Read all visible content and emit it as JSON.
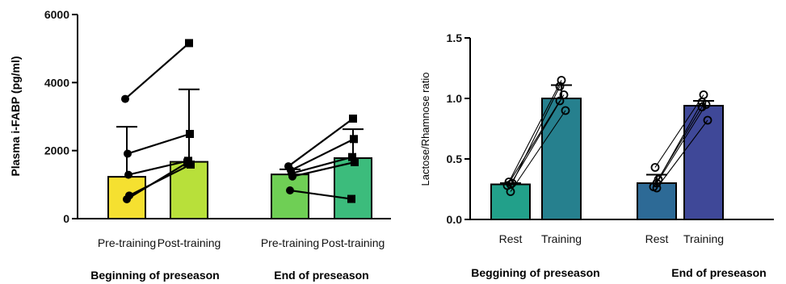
{
  "chart_data": [
    {
      "type": "bar",
      "title": "",
      "ylabel": "Plasma i-FABP (pg/ml)",
      "ylim": [
        0,
        6000
      ],
      "yticks": [
        0,
        2000,
        4000,
        6000
      ],
      "categories": [
        "Pre-training",
        "Post-training",
        "Pre-training",
        "Post-training"
      ],
      "groups": [
        {
          "label": "Beginning of preseason",
          "categories": [
            0,
            1
          ]
        },
        {
          "label": "End of preseason",
          "categories": [
            2,
            3
          ]
        }
      ],
      "bar_colors": [
        "#f5e030",
        "#b8e03a",
        "#6fcf55",
        "#3cbc7c"
      ],
      "values": [
        1230,
        1670,
        1300,
        1780
      ],
      "error_upper": [
        2700,
        3800,
        1450,
        2630
      ],
      "paired_lines": [
        {
          "group": 0,
          "pre": [
            3520,
            1910,
            1290,
            680,
            570
          ],
          "post": [
            5160,
            2490,
            1700,
            1590,
            1650
          ]
        },
        {
          "group": 1,
          "pre": [
            1540,
            1420,
            1330,
            1240,
            830
          ],
          "post": [
            2940,
            2340,
            1810,
            1660,
            580
          ]
        }
      ],
      "markers": [
        "circle",
        "square"
      ]
    },
    {
      "type": "bar",
      "title": "",
      "ylabel": "Lactose/Rhamnose ratio",
      "ylim": [
        0,
        1.5
      ],
      "yticks": [
        "0.0",
        "0.5",
        "1.0",
        "1.5"
      ],
      "categories": [
        "Rest",
        "Training",
        "Rest",
        "Training"
      ],
      "groups": [
        {
          "label": "Beggining of preseason",
          "categories": [
            0,
            1
          ]
        },
        {
          "label": "End of preseason",
          "categories": [
            2,
            3
          ]
        }
      ],
      "bar_colors": [
        "#22a08a",
        "#26808e",
        "#2d6a96",
        "#3f4898"
      ],
      "values": [
        0.29,
        1.0,
        0.3,
        0.94
      ],
      "error_upper": [
        0.3,
        1.11,
        0.37,
        0.98
      ],
      "paired_lines": [
        {
          "group": 0,
          "rest": [
            0.31,
            0.3,
            0.29,
            0.28,
            0.23
          ],
          "training": [
            1.15,
            1.1,
            1.03,
            0.98,
            0.9
          ]
        },
        {
          "group": 1,
          "rest": [
            0.43,
            0.33,
            0.3,
            0.27,
            0.26
          ],
          "training": [
            1.03,
            0.97,
            0.95,
            0.93,
            0.82
          ]
        }
      ],
      "markers": [
        "open-circle",
        "open-circle"
      ]
    }
  ]
}
